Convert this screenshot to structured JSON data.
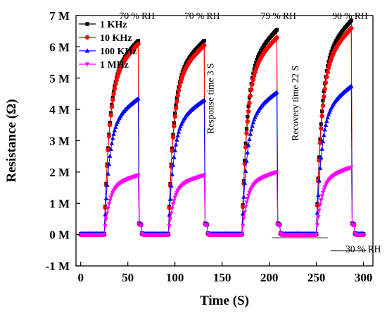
{
  "chart_data": {
    "type": "line",
    "xlabel": "Time (S)",
    "ylabel": "Resistance (Ω)",
    "xlim": [
      -5,
      310
    ],
    "ylim": [
      -1,
      7
    ],
    "x_ticks": [
      0,
      50,
      100,
      150,
      200,
      250,
      300
    ],
    "x_tick_labels": [
      "0",
      "50",
      "100",
      "150",
      "200",
      "250",
      "300"
    ],
    "y_ticks": [
      -1,
      0,
      1,
      2,
      3,
      4,
      5,
      6,
      7
    ],
    "y_tick_labels": [
      "-1 M",
      "0 M",
      "1 M",
      "2 M",
      "3 M",
      "4 M",
      "5 M",
      "6 M",
      "7 M"
    ],
    "y_unit": "MΩ",
    "grid": false,
    "legend_position": "top-left",
    "cycles": [
      {
        "start": 25,
        "plateau_end": 61,
        "recovery_end": 66
      },
      {
        "start": 93,
        "plateau_end": 131,
        "recovery_end": 136
      },
      {
        "start": 171,
        "plateau_end": 208,
        "recovery_end": 213
      },
      {
        "start": 250,
        "plateau_end": 287,
        "recovery_end": 292
      }
    ],
    "series": [
      {
        "name": "1 KHz",
        "color": "#000000",
        "marker": "square",
        "baseline": 0.02,
        "peaks": [
          6.2,
          6.2,
          6.55,
          6.85
        ]
      },
      {
        "name": "10 KHz",
        "color": "#ff0000",
        "marker": "circle",
        "baseline": 0.0,
        "peaks": [
          6.1,
          6.05,
          6.3,
          6.6
        ]
      },
      {
        "name": "100 KHz",
        "color": "#0000ff",
        "marker": "triangle-up",
        "baseline": 0.03,
        "peaks": [
          4.35,
          4.3,
          4.55,
          4.75
        ]
      },
      {
        "name": "1 MHz",
        "color": "#ff00ff",
        "marker": "triangle-down",
        "baseline": 0.0,
        "peaks": [
          1.9,
          1.9,
          2.0,
          2.15
        ]
      }
    ],
    "annotations": [
      {
        "id": "rh1",
        "text": "70 % RH",
        "x": 41,
        "y": 7.0
      },
      {
        "id": "rh2",
        "text": "70 % RH",
        "x": 110,
        "y": 7.0
      },
      {
        "id": "rh3",
        "text": "79 % RH",
        "x": 191,
        "y": 7.0
      },
      {
        "id": "rh4",
        "text": "90 % RH",
        "x": 267,
        "y": 7.0
      },
      {
        "id": "rh5",
        "text": "30 % RH",
        "x": 281,
        "y": -0.45
      }
    ],
    "vertical_annotations": [
      {
        "id": "response",
        "text": "Response time  3 S",
        "x": 141,
        "y": 4.35
      },
      {
        "id": "recovery",
        "text": "Recovery time 22 S",
        "x": 231,
        "y": 4.2
      }
    ],
    "reference_lines": [
      {
        "x1": 203,
        "x2": 262,
        "y": -0.1
      },
      {
        "x1": 265,
        "x2": 303,
        "y": -0.52
      }
    ]
  }
}
